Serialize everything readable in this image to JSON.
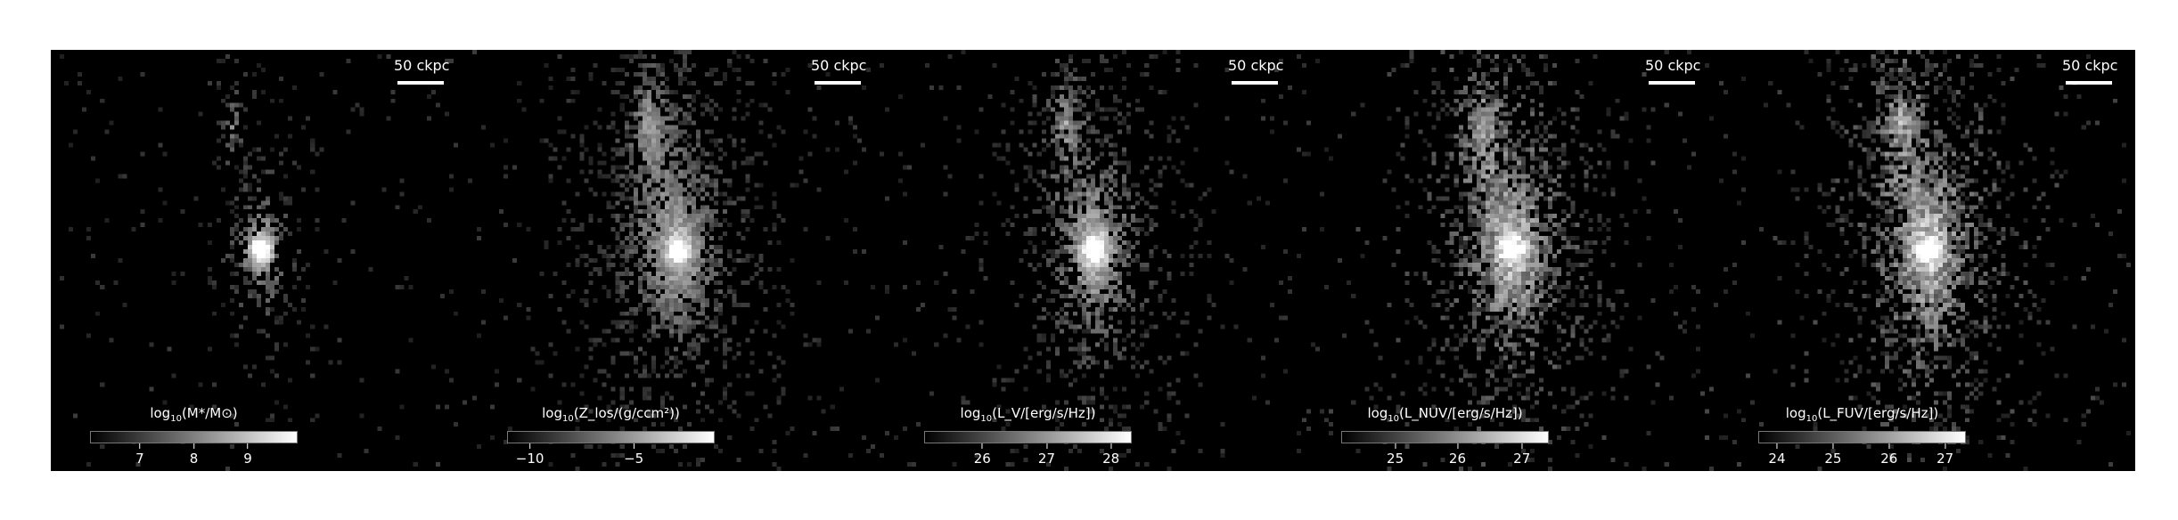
{
  "panels": [
    {
      "scale_label": "50 ckpc",
      "colorbar": {
        "pre": "log",
        "base": "10",
        "label": "(M*/M⊙)",
        "ticks": [
          {
            "label": "7",
            "frac": 0.24
          },
          {
            "label": "8",
            "frac": 0.5
          },
          {
            "label": "9",
            "frac": 0.76
          }
        ]
      },
      "image": {
        "spread": 0.55,
        "noise": 0.25,
        "core": 1.0,
        "sparse": 0.55
      }
    },
    {
      "scale_label": "50 ckpc",
      "colorbar": {
        "pre": "log",
        "base": "10",
        "label": "(Z_los/(g/ccm²))",
        "ticks": [
          {
            "label": "−10",
            "frac": 0.11
          },
          {
            "label": "−5",
            "frac": 0.61
          }
        ]
      },
      "image": {
        "spread": 1.1,
        "noise": 0.25,
        "core": 0.85,
        "sparse": 0.82
      }
    },
    {
      "scale_label": "50 ckpc",
      "colorbar": {
        "pre": "log",
        "base": "10",
        "label": "(L_V/[erg/s/Hz])",
        "ticks": [
          {
            "label": "26",
            "frac": 0.28
          },
          {
            "label": "27",
            "frac": 0.59
          },
          {
            "label": "28",
            "frac": 0.9
          }
        ]
      },
      "image": {
        "spread": 0.9,
        "noise": 0.3,
        "core": 0.95,
        "sparse": 0.75
      }
    },
    {
      "scale_label": "50 ckpc",
      "colorbar": {
        "pre": "log",
        "base": "10",
        "label": "(L_NUV/[erg/s/Hz])",
        "ticks": [
          {
            "label": "25",
            "frac": 0.26
          },
          {
            "label": "26",
            "frac": 0.56
          },
          {
            "label": "27",
            "frac": 0.87
          }
        ]
      },
      "image": {
        "spread": 1.05,
        "noise": 0.4,
        "core": 0.9,
        "sparse": 0.82
      }
    },
    {
      "scale_label": "50 ckpc",
      "colorbar": {
        "pre": "log",
        "base": "10",
        "label": "(L_FUV/[erg/s/Hz])",
        "ticks": [
          {
            "label": "24",
            "frac": 0.09
          },
          {
            "label": "25",
            "frac": 0.36
          },
          {
            "label": "26",
            "frac": 0.63
          },
          {
            "label": "27",
            "frac": 0.9
          }
        ]
      },
      "image": {
        "spread": 1.05,
        "noise": 0.42,
        "core": 0.9,
        "sparse": 0.85
      }
    }
  ]
}
